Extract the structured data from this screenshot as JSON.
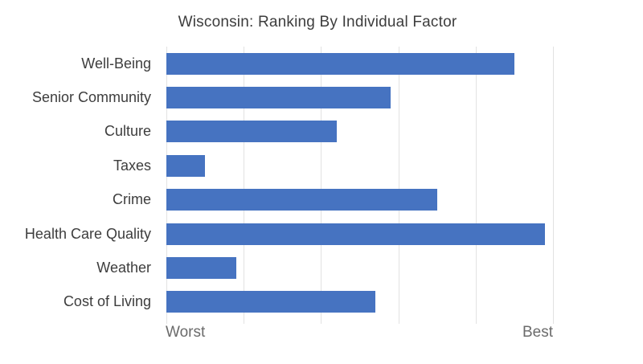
{
  "title": "Wisconsin: Ranking By Individual Factor",
  "axis": {
    "worst_label": "Worst",
    "best_label": "Best"
  },
  "colors": {
    "bar": "#4673c1",
    "gridline": "#e2e2e2",
    "title_text": "#3d3d3d",
    "category_text": "#3d3d3d",
    "axis_label_text": "#6b6b6b"
  },
  "chart_data": {
    "type": "bar",
    "orientation": "horizontal",
    "title": "Wisconsin: Ranking By Individual Factor",
    "categories": [
      "Well-Being",
      "Senior Community",
      "Culture",
      "Taxes",
      "Crime",
      "Health Care Quality",
      "Weather",
      "Cost of Living"
    ],
    "values": [
      45,
      29,
      22,
      5,
      35,
      49,
      9,
      27
    ],
    "xlim": [
      0,
      50
    ],
    "gridline_step": 10,
    "x_tick_labels": [
      "Worst",
      "Best"
    ],
    "xlabel": "",
    "ylabel": "",
    "legend": "none",
    "grid": "vertical"
  }
}
